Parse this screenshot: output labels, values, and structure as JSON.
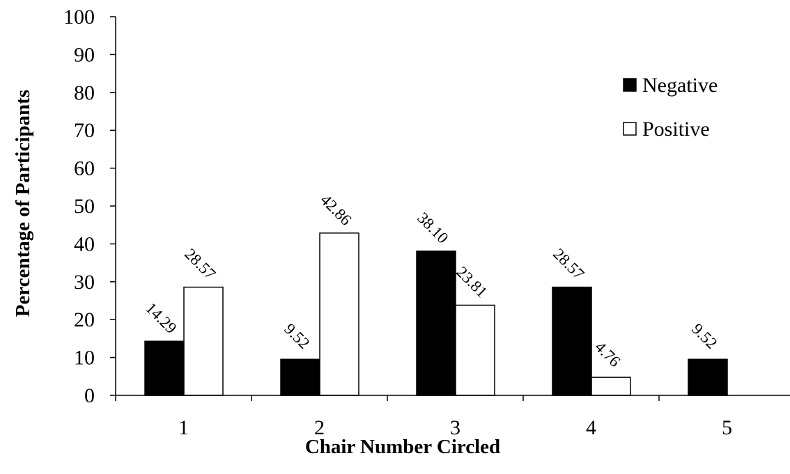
{
  "chart_data": {
    "type": "bar",
    "categories": [
      "1",
      "2",
      "3",
      "4",
      "5"
    ],
    "series": [
      {
        "name": "Negative",
        "values": [
          14.29,
          9.52,
          38.1,
          28.57,
          9.52
        ],
        "labels": [
          "14.29",
          "9.52",
          "38.10",
          "28.57",
          "9.52"
        ],
        "color": "#000000"
      },
      {
        "name": "Positive",
        "values": [
          28.57,
          42.86,
          23.81,
          4.76,
          null
        ],
        "labels": [
          "28.57",
          "42.86",
          "23.81",
          "4.76",
          ""
        ],
        "color": "#ffffff"
      }
    ],
    "title": "",
    "xlabel": "Chair Number Circled",
    "ylabel": "Percentage of Participants",
    "ylim": [
      0,
      100
    ],
    "yticks": [
      "0",
      "10",
      "20",
      "30",
      "40",
      "50",
      "60",
      "70",
      "80",
      "90",
      "100"
    ],
    "grid": false,
    "legend_position": "top-right"
  }
}
